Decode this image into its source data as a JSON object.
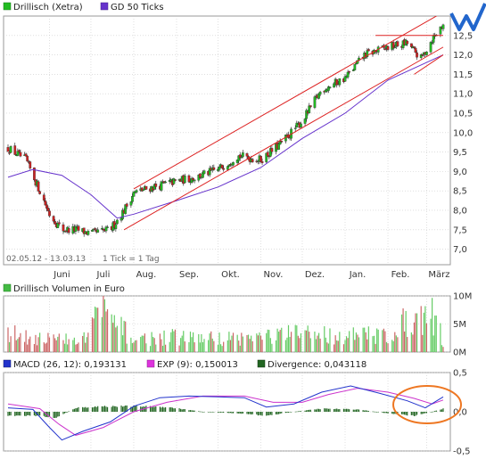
{
  "colors": {
    "up": "#22bb22",
    "down": "#cc2222",
    "gd": "#6633cc",
    "channel": "#dd2222",
    "volume_up": "#66cc66",
    "volume_down": "#cc6666",
    "macd": "#2233cc",
    "exp": "#cc33cc",
    "divergence": "#226622",
    "highlight": "#ee7722",
    "grid": "#cccccc",
    "logo": "#2266cc"
  },
  "icons": {
    "price_series": "green-square-icon",
    "gd_series": "purple-square-icon",
    "volume_series": "green-square-icon",
    "macd_series": "blue-square-icon",
    "exp_series": "magenta-square-icon",
    "divergence_series": "dark-green-square-icon",
    "logo": "w-logo-icon"
  },
  "legend": {
    "price": "Drillisch (Xetra)",
    "gd": "GD 50 Ticks",
    "volume": "Drillisch Volumen in Euro",
    "macd": "MACD (26, 12): 0,193131",
    "exp": "EXP (9): 0,150013",
    "divergence": "Divergence: 0,043118"
  },
  "info": {
    "range": "02.05.12 - 13.03.13",
    "tick": "1 Tick = 1 Tag"
  },
  "chart_data": [
    {
      "type": "candlestick",
      "title": "Drillisch (Xetra)",
      "series_names": [
        "Drillisch (Xetra)",
        "GD 50 Ticks"
      ],
      "x_tick_labels": [
        "Juni",
        "Juli",
        "Aug.",
        "Sep.",
        "Okt.",
        "Nov.",
        "Dez.",
        "Jan.",
        "Feb.",
        "März"
      ],
      "y_tick_labels": [
        "12,5",
        "12,0",
        "11,5",
        "11,0",
        "10,5",
        "10,0",
        "9,5",
        "9,0",
        "8,5",
        "8,0",
        "7,5",
        "7,0"
      ],
      "ylim": [
        6.6,
        13.0
      ],
      "grid": true,
      "legend_position": "top-left",
      "close_points": [
        [
          "2012-05-02",
          9.6
        ],
        [
          "2012-05-15",
          9.3
        ],
        [
          "2012-05-25",
          8.5
        ],
        [
          "2012-06-01",
          7.9
        ],
        [
          "2012-06-10",
          7.5
        ],
        [
          "2012-06-20",
          7.5
        ],
        [
          "2012-07-01",
          7.4
        ],
        [
          "2012-07-15",
          7.5
        ],
        [
          "2012-07-25",
          8.0
        ],
        [
          "2012-08-01",
          8.45
        ],
        [
          "2012-08-15",
          8.6
        ],
        [
          "2012-09-01",
          8.75
        ],
        [
          "2012-09-15",
          8.85
        ],
        [
          "2012-10-01",
          9.05
        ],
        [
          "2012-10-15",
          9.4
        ],
        [
          "2012-11-01",
          9.3
        ],
        [
          "2012-11-15",
          9.7
        ],
        [
          "2012-12-01",
          10.3
        ],
        [
          "2012-12-15",
          11.1
        ],
        [
          "2013-01-01",
          11.4
        ],
        [
          "2013-01-15",
          12.0
        ],
        [
          "2013-02-01",
          12.2
        ],
        [
          "2013-02-15",
          12.3
        ],
        [
          "2013-02-25",
          11.9
        ],
        [
          "2013-03-05",
          12.4
        ],
        [
          "2013-03-13",
          12.8
        ]
      ],
      "gd50_points": [
        [
          "2012-05-02",
          8.85
        ],
        [
          "2012-05-20",
          9.05
        ],
        [
          "2012-06-10",
          8.9
        ],
        [
          "2012-07-01",
          8.4
        ],
        [
          "2012-07-20",
          7.8
        ],
        [
          "2012-08-01",
          7.9
        ],
        [
          "2012-09-01",
          8.25
        ],
        [
          "2012-10-01",
          8.6
        ],
        [
          "2012-11-01",
          9.1
        ],
        [
          "2012-12-01",
          9.85
        ],
        [
          "2013-01-01",
          10.5
        ],
        [
          "2013-02-01",
          11.35
        ],
        [
          "2013-03-13",
          12.0
        ]
      ],
      "channel_lines": [
        {
          "name": "upper",
          "from": [
            "2012-08-01",
            8.55
          ],
          "to": [
            "2013-03-13",
            13.1
          ]
        },
        {
          "name": "lower",
          "from": [
            "2012-07-25",
            7.5
          ],
          "to": [
            "2013-03-13",
            12.2
          ]
        },
        {
          "name": "resistance",
          "from": [
            "2013-01-23",
            12.5
          ],
          "to": [
            "2013-03-13",
            12.5
          ]
        },
        {
          "name": "short-lower",
          "from": [
            "2013-02-20",
            11.5
          ],
          "to": [
            "2013-03-13",
            12.0
          ]
        }
      ]
    },
    {
      "type": "bar",
      "title": "Drillisch Volumen in Euro",
      "y_tick_labels": [
        "10M",
        "5M",
        "0M"
      ],
      "ylim": [
        0,
        10
      ],
      "unit": "M EUR",
      "grid": true,
      "legend_position": "top-left",
      "volume_points": [
        [
          "2012-05-10",
          3.2
        ],
        [
          "2012-06-01",
          2.5
        ],
        [
          "2012-06-25",
          2.0
        ],
        [
          "2012-07-06",
          7.9
        ],
        [
          "2012-08-01",
          2.4
        ],
        [
          "2012-09-01",
          2.8
        ],
        [
          "2012-10-01",
          2.5
        ],
        [
          "2012-11-01",
          2.9
        ],
        [
          "2012-12-05",
          3.5
        ],
        [
          "2013-01-01",
          3.0
        ],
        [
          "2013-02-01",
          3.3
        ],
        [
          "2013-02-22",
          6.9
        ],
        [
          "2013-03-08",
          6.5
        ],
        [
          "2013-03-13",
          2.0
        ]
      ]
    },
    {
      "type": "line",
      "title": "MACD (26, 12): 0,193131",
      "series_names": [
        "MACD (26, 12)",
        "EXP (9)",
        "Divergence"
      ],
      "y_tick_labels": [
        "0,5",
        "0,0",
        "-0,5"
      ],
      "ylim": [
        -0.5,
        0.5
      ],
      "grid": true,
      "legend_position": "top-left",
      "macd_points": [
        [
          "2012-05-02",
          0.05
        ],
        [
          "2012-05-20",
          0.03
        ],
        [
          "2012-06-01",
          -0.2
        ],
        [
          "2012-06-10",
          -0.36
        ],
        [
          "2012-06-25",
          -0.25
        ],
        [
          "2012-07-15",
          -0.13
        ],
        [
          "2012-08-01",
          0.07
        ],
        [
          "2012-08-20",
          0.18
        ],
        [
          "2012-09-10",
          0.2
        ],
        [
          "2012-10-01",
          0.19
        ],
        [
          "2012-10-20",
          0.18
        ],
        [
          "2012-11-05",
          0.06
        ],
        [
          "2012-11-25",
          0.1
        ],
        [
          "2012-12-15",
          0.25
        ],
        [
          "2013-01-05",
          0.33
        ],
        [
          "2013-01-25",
          0.24
        ],
        [
          "2013-02-15",
          0.14
        ],
        [
          "2013-02-28",
          0.05
        ],
        [
          "2013-03-13",
          0.19
        ]
      ],
      "exp_points": [
        [
          "2012-05-02",
          0.1
        ],
        [
          "2012-05-25",
          0.04
        ],
        [
          "2012-06-08",
          -0.16
        ],
        [
          "2012-06-20",
          -0.3
        ],
        [
          "2012-07-10",
          -0.2
        ],
        [
          "2012-08-01",
          0.0
        ],
        [
          "2012-08-25",
          0.12
        ],
        [
          "2012-09-20",
          0.2
        ],
        [
          "2012-10-20",
          0.2
        ],
        [
          "2012-11-10",
          0.12
        ],
        [
          "2012-12-01",
          0.12
        ],
        [
          "2012-12-20",
          0.22
        ],
        [
          "2013-01-10",
          0.3
        ],
        [
          "2013-02-01",
          0.25
        ],
        [
          "2013-02-20",
          0.17
        ],
        [
          "2013-03-05",
          0.1
        ],
        [
          "2013-03-13",
          0.15
        ]
      ],
      "divergence_points": [
        [
          "2012-05-02",
          -0.05
        ],
        [
          "2012-05-25",
          -0.05
        ],
        [
          "2012-06-05",
          -0.08
        ],
        [
          "2012-06-20",
          0.05
        ],
        [
          "2012-07-10",
          0.07
        ],
        [
          "2012-08-05",
          0.07
        ],
        [
          "2012-08-25",
          0.06
        ],
        [
          "2012-09-20",
          0.0
        ],
        [
          "2012-10-15",
          -0.02
        ],
        [
          "2012-11-05",
          -0.05
        ],
        [
          "2012-11-25",
          0.0
        ],
        [
          "2012-12-15",
          0.04
        ],
        [
          "2013-01-10",
          0.03
        ],
        [
          "2013-02-01",
          -0.02
        ],
        [
          "2013-02-20",
          -0.05
        ],
        [
          "2013-03-05",
          0.0
        ],
        [
          "2013-03-13",
          0.04
        ]
      ]
    }
  ]
}
